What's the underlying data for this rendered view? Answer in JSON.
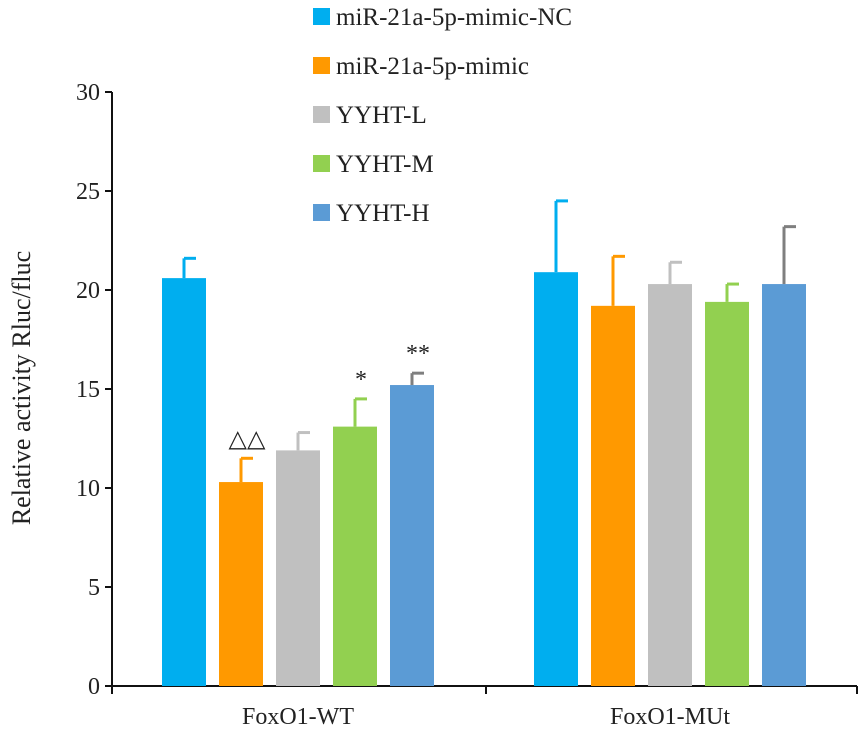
{
  "chart_data": {
    "type": "bar",
    "title": "",
    "xlabel": "",
    "ylabel": "Relative activity Rluc/fluc",
    "ylim": [
      0,
      30
    ],
    "yticks": [
      0,
      5,
      10,
      15,
      20,
      25,
      30
    ],
    "grid": false,
    "legend_position": "top",
    "categories": [
      "FoxO1-WT",
      "FoxO1-MUt"
    ],
    "series": [
      {
        "name": "miR-21a-5p-mimic-NC",
        "color": "#00aeef",
        "values": [
          20.6,
          20.9
        ],
        "errors": [
          1.0,
          3.6
        ],
        "annotations": [
          "",
          ""
        ]
      },
      {
        "name": "miR-21a-5p-mimic",
        "color": "#ff9900",
        "values": [
          10.3,
          19.2
        ],
        "errors": [
          1.2,
          2.5
        ],
        "annotations": [
          "△△",
          ""
        ]
      },
      {
        "name": "YYHT-L",
        "color": "#c0c0c0",
        "values": [
          11.9,
          20.3
        ],
        "errors": [
          0.9,
          1.1
        ],
        "annotations": [
          "",
          ""
        ]
      },
      {
        "name": "YYHT-M",
        "color": "#92d050",
        "values": [
          13.1,
          19.4
        ],
        "errors": [
          1.4,
          0.9
        ],
        "annotations": [
          "*",
          ""
        ]
      },
      {
        "name": "YYHT-H",
        "color": "#5b9bd5",
        "values": [
          15.2,
          20.3
        ],
        "errors": [
          0.6,
          2.9
        ],
        "annotations": [
          "**",
          ""
        ]
      }
    ]
  }
}
